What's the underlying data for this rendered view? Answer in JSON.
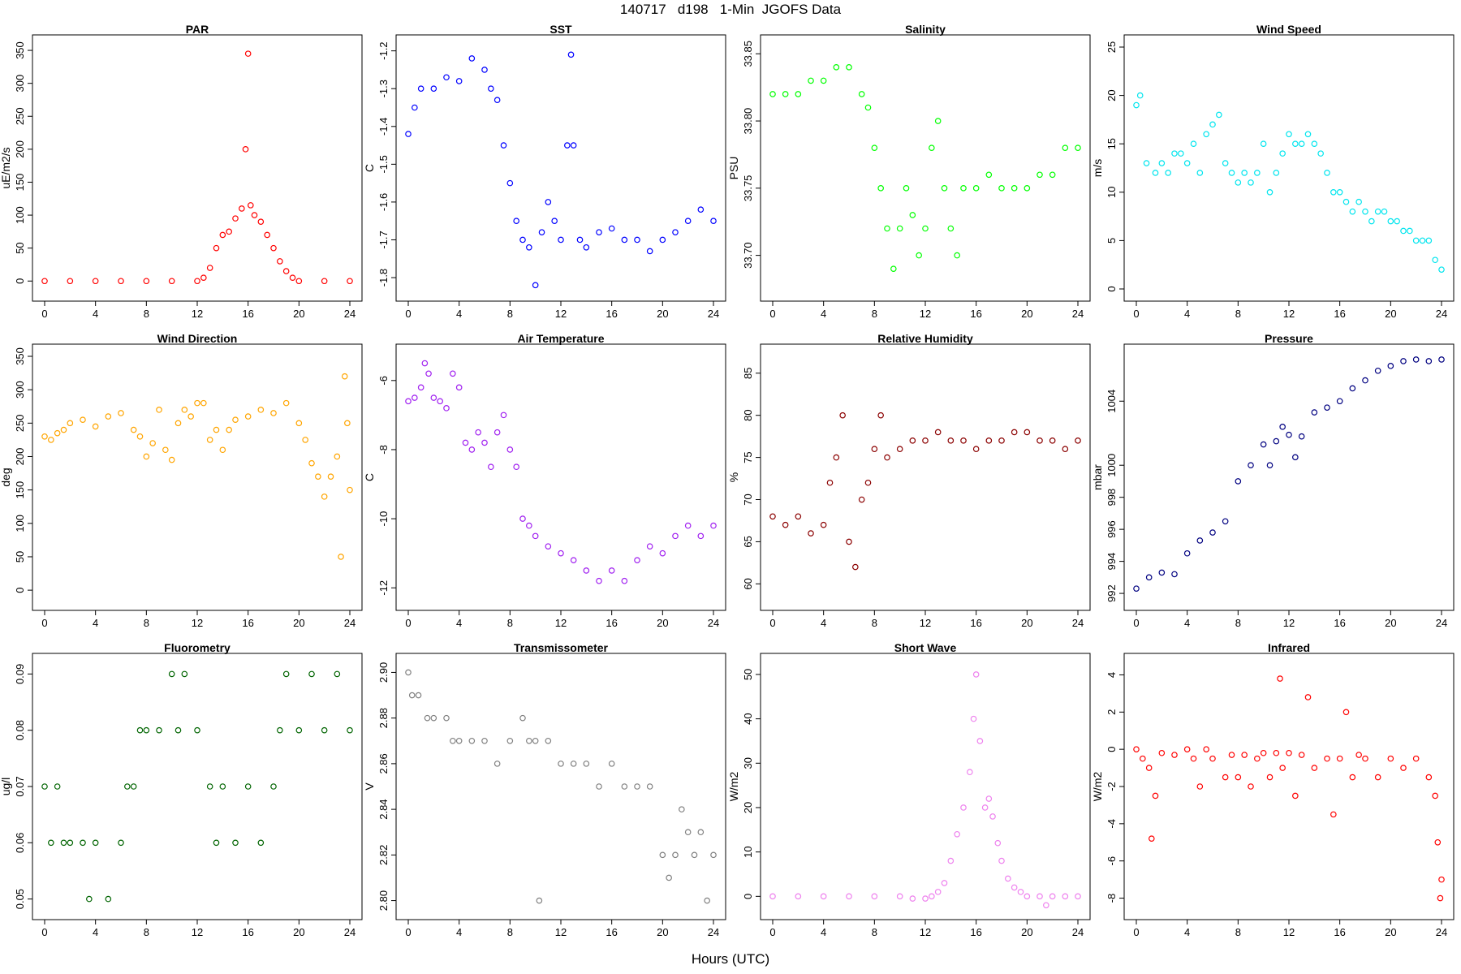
{
  "figure": {
    "title": "140717   d198   1-Min  JGOFS Data",
    "xlabel": "Hours (UTC)"
  },
  "chart_data": [
    {
      "type": "scatter",
      "title": "PAR",
      "ylabel": "uE/m2/s",
      "color": "#ff0000",
      "xlim": [
        0,
        24
      ],
      "ylim": [
        -12,
        355
      ],
      "xticks": [
        0,
        4,
        8,
        12,
        16,
        20,
        24
      ],
      "yticks": [
        0,
        50,
        100,
        150,
        200,
        250,
        300,
        350
      ],
      "x": [
        0,
        2,
        4,
        6,
        8,
        10,
        12,
        12.5,
        13,
        13.5,
        14,
        14.5,
        15,
        15.5,
        15.8,
        16,
        16.2,
        16.5,
        17,
        17.5,
        18,
        18.5,
        19,
        19.5,
        20,
        22,
        24
      ],
      "y": [
        0,
        0,
        0,
        0,
        0,
        0,
        0,
        5,
        20,
        50,
        70,
        75,
        95,
        110,
        200,
        345,
        115,
        100,
        90,
        70,
        50,
        30,
        15,
        5,
        0,
        0,
        0
      ]
    },
    {
      "type": "scatter",
      "title": "SST",
      "ylabel": "C",
      "color": "#0000ff",
      "xlim": [
        0,
        24
      ],
      "ylim": [
        -1.83,
        -1.19
      ],
      "xticks": [
        0,
        4,
        8,
        12,
        16,
        20,
        24
      ],
      "yticks": [
        -1.2,
        -1.3,
        -1.4,
        -1.5,
        -1.6,
        -1.7,
        -1.8
      ],
      "x": [
        0,
        0.5,
        1,
        2,
        3,
        4,
        5,
        6,
        6.5,
        7,
        7.5,
        8,
        8.5,
        9,
        9.5,
        10,
        10.5,
        11,
        11.5,
        12,
        12.5,
        12.8,
        13,
        13.5,
        14,
        15,
        16,
        17,
        18,
        19,
        20,
        21,
        22,
        23,
        24
      ],
      "y": [
        -1.42,
        -1.35,
        -1.3,
        -1.3,
        -1.27,
        -1.28,
        -1.22,
        -1.25,
        -1.3,
        -1.33,
        -1.45,
        -1.55,
        -1.65,
        -1.7,
        -1.72,
        -1.82,
        -1.68,
        -1.6,
        -1.65,
        -1.7,
        -1.45,
        -1.21,
        -1.45,
        -1.7,
        -1.72,
        -1.68,
        -1.67,
        -1.7,
        -1.7,
        -1.73,
        -1.7,
        -1.68,
        -1.65,
        -1.62,
        -1.65
      ]
    },
    {
      "type": "scatter",
      "title": "Salinity",
      "ylabel": "PSU",
      "color": "#00ff00",
      "xlim": [
        0,
        24
      ],
      "ylim": [
        33.675,
        33.855
      ],
      "xticks": [
        0,
        4,
        8,
        12,
        16,
        20,
        24
      ],
      "yticks": [
        33.7,
        33.75,
        33.8,
        33.85
      ],
      "x": [
        0,
        1,
        2,
        3,
        4,
        5,
        6,
        7,
        7.5,
        8,
        8.5,
        9,
        9.5,
        10,
        10.5,
        11,
        11.5,
        12,
        12.5,
        13,
        13.5,
        14,
        14.5,
        15,
        16,
        17,
        18,
        19,
        20,
        21,
        22,
        23,
        24
      ],
      "y": [
        33.82,
        33.82,
        33.82,
        33.83,
        33.83,
        33.84,
        33.84,
        33.82,
        33.81,
        33.78,
        33.75,
        33.72,
        33.69,
        33.72,
        33.75,
        33.73,
        33.7,
        33.72,
        33.78,
        33.8,
        33.75,
        33.72,
        33.7,
        33.75,
        33.75,
        33.76,
        33.75,
        33.75,
        33.75,
        33.76,
        33.76,
        33.78,
        33.78
      ]
    },
    {
      "type": "scatter",
      "title": "Wind Speed",
      "ylabel": "m/s",
      "color": "#00e5ee",
      "xlim": [
        0,
        24
      ],
      "ylim": [
        0,
        25
      ],
      "xticks": [
        0,
        4,
        8,
        12,
        16,
        20,
        24
      ],
      "yticks": [
        0,
        5,
        10,
        15,
        20,
        25
      ],
      "x": [
        0,
        0.3,
        0.8,
        1.5,
        2,
        2.5,
        3,
        3.5,
        4,
        4.5,
        5,
        5.5,
        6,
        6.5,
        7,
        7.5,
        8,
        8.5,
        9,
        9.5,
        10,
        10.5,
        11,
        11.5,
        12,
        12.5,
        13,
        13.5,
        14,
        14.5,
        15,
        15.5,
        16,
        16.5,
        17,
        17.5,
        18,
        18.5,
        19,
        19.5,
        20,
        20.5,
        21,
        21.5,
        22,
        22.5,
        23,
        23.5,
        24
      ],
      "y": [
        19,
        20,
        13,
        12,
        13,
        12,
        14,
        14,
        13,
        15,
        12,
        16,
        17,
        18,
        13,
        12,
        11,
        12,
        11,
        12,
        15,
        10,
        12,
        14,
        16,
        15,
        15,
        16,
        15,
        14,
        12,
        10,
        10,
        9,
        8,
        9,
        8,
        7,
        8,
        8,
        7,
        7,
        6,
        6,
        5,
        5,
        5,
        3,
        2
      ]
    },
    {
      "type": "scatter",
      "title": "Wind Direction",
      "ylabel": "deg",
      "color": "#ffa500",
      "xlim": [
        0,
        24
      ],
      "ylim": [
        -12,
        350
      ],
      "xticks": [
        0,
        4,
        8,
        12,
        16,
        20,
        24
      ],
      "yticks": [
        0,
        50,
        100,
        150,
        200,
        250,
        300,
        350
      ],
      "x": [
        0,
        0.5,
        1,
        1.5,
        2,
        3,
        4,
        5,
        6,
        7,
        7.5,
        8,
        8.5,
        9,
        9.5,
        10,
        10.5,
        11,
        11.5,
        12,
        12.5,
        13,
        13.5,
        14,
        14.5,
        15,
        16,
        17,
        18,
        19,
        20,
        20.5,
        21,
        21.5,
        22,
        22.5,
        23,
        23.3,
        23.6,
        23.8,
        24
      ],
      "y": [
        230,
        225,
        235,
        240,
        250,
        255,
        245,
        260,
        265,
        240,
        230,
        200,
        220,
        270,
        210,
        195,
        250,
        270,
        260,
        280,
        280,
        225,
        240,
        210,
        240,
        255,
        260,
        270,
        265,
        280,
        250,
        225,
        190,
        170,
        140,
        170,
        200,
        50,
        320,
        250,
        150
      ]
    },
    {
      "type": "scatter",
      "title": "Air Temperature",
      "ylabel": "C",
      "color": "#a020f0",
      "xlim": [
        0,
        24
      ],
      "ylim": [
        -12.3,
        -5.3
      ],
      "xticks": [
        0,
        4,
        8,
        12,
        16,
        20,
        24
      ],
      "yticks": [
        -6,
        -8,
        -10,
        -12
      ],
      "x": [
        0,
        0.5,
        1,
        1.3,
        1.6,
        2,
        2.5,
        3,
        3.5,
        4,
        4.5,
        5,
        5.5,
        6,
        6.5,
        7,
        7.5,
        8,
        8.5,
        9,
        9.5,
        10,
        11,
        12,
        13,
        14,
        15,
        16,
        17,
        18,
        19,
        20,
        21,
        22,
        23,
        24
      ],
      "y": [
        -6.6,
        -6.5,
        -6.2,
        -5.5,
        -5.8,
        -6.5,
        -6.6,
        -6.8,
        -5.8,
        -6.2,
        -7.8,
        -8.0,
        -7.5,
        -7.8,
        -8.5,
        -7.5,
        -7.0,
        -8.0,
        -8.5,
        -10.0,
        -10.2,
        -10.5,
        -10.8,
        -11.0,
        -11.2,
        -11.5,
        -11.8,
        -11.5,
        -11.8,
        -11.2,
        -10.8,
        -11.0,
        -10.5,
        -10.2,
        -10.5,
        -10.2
      ]
    },
    {
      "type": "scatter",
      "title": "Relative Humidity",
      "ylabel": "%",
      "color": "#8b0000",
      "xlim": [
        0,
        24
      ],
      "ylim": [
        58.3,
        87
      ],
      "xticks": [
        0,
        4,
        8,
        12,
        16,
        20,
        24
      ],
      "yticks": [
        60,
        65,
        70,
        75,
        80,
        85
      ],
      "x": [
        0,
        1,
        2,
        3,
        4,
        4.5,
        5,
        5.5,
        6,
        6.5,
        7,
        7.5,
        8,
        8.5,
        9,
        10,
        11,
        12,
        13,
        14,
        15,
        16,
        17,
        18,
        19,
        20,
        21,
        22,
        23,
        24
      ],
      "y": [
        68,
        67,
        68,
        66,
        67,
        72,
        75,
        80,
        65,
        62,
        70,
        72,
        76,
        80,
        75,
        76,
        77,
        77,
        78,
        77,
        77,
        76,
        77,
        77,
        78,
        78,
        77,
        77,
        76,
        77
      ]
    },
    {
      "type": "scatter",
      "title": "Pressure",
      "ylabel": "mbar",
      "color": "#000080",
      "xlim": [
        0,
        24
      ],
      "ylim": [
        991.7,
        1006.8
      ],
      "xticks": [
        0,
        4,
        8,
        12,
        16,
        20,
        24
      ],
      "yticks": [
        992,
        994,
        996,
        998,
        1000,
        1004
      ],
      "x": [
        0,
        1,
        2,
        3,
        4,
        5,
        6,
        7,
        8,
        9,
        10,
        10.5,
        11,
        11.5,
        12,
        12.5,
        13,
        14,
        15,
        16,
        17,
        18,
        19,
        20,
        21,
        22,
        23,
        24
      ],
      "y": [
        992.3,
        993.0,
        993.3,
        993.2,
        994.5,
        995.3,
        995.8,
        996.5,
        999.0,
        1000.0,
        1001.3,
        1000.0,
        1001.5,
        1002.4,
        1001.9,
        1000.5,
        1001.8,
        1003.3,
        1003.6,
        1004.0,
        1004.8,
        1005.3,
        1005.9,
        1006.2,
        1006.5,
        1006.6,
        1006.5,
        1006.6
      ]
    },
    {
      "type": "scatter",
      "title": "Fluorometry",
      "ylabel": "ug/l",
      "color": "#006400",
      "xlim": [
        0,
        24
      ],
      "ylim": [
        0.0485,
        0.0915
      ],
      "xticks": [
        0,
        4,
        8,
        12,
        16,
        20,
        24
      ],
      "yticks": [
        0.05,
        0.06,
        0.07,
        0.08,
        0.09
      ],
      "x": [
        0,
        0.5,
        1,
        1.5,
        2,
        3,
        3.5,
        4,
        5,
        6,
        6.5,
        7,
        7.5,
        8,
        9,
        10,
        10.5,
        11,
        12,
        13,
        13.5,
        14,
        15,
        16,
        17,
        18,
        18.5,
        19,
        20,
        21,
        22,
        23,
        24
      ],
      "y": [
        0.07,
        0.06,
        0.07,
        0.06,
        0.06,
        0.06,
        0.05,
        0.06,
        0.05,
        0.06,
        0.07,
        0.07,
        0.08,
        0.08,
        0.08,
        0.09,
        0.08,
        0.09,
        0.08,
        0.07,
        0.06,
        0.07,
        0.06,
        0.07,
        0.06,
        0.07,
        0.08,
        0.09,
        0.08,
        0.09,
        0.08,
        0.09,
        0.08
      ]
    },
    {
      "type": "scatter",
      "title": "Transmissometer",
      "ylabel": "V",
      "color": "#808080",
      "xlim": [
        0,
        24
      ],
      "ylim": [
        2.797,
        2.903
      ],
      "xticks": [
        0,
        4,
        8,
        12,
        16,
        20,
        24
      ],
      "yticks": [
        2.8,
        2.82,
        2.84,
        2.86,
        2.88,
        2.9
      ],
      "x": [
        0,
        0.3,
        0.8,
        1.5,
        2,
        3,
        3.5,
        4,
        5,
        6,
        7,
        8,
        9,
        9.5,
        10,
        10.3,
        11,
        12,
        13,
        14,
        15,
        16,
        17,
        18,
        19,
        20,
        20.5,
        21,
        21.5,
        22,
        22.5,
        23,
        23.5,
        24
      ],
      "y": [
        2.9,
        2.89,
        2.89,
        2.88,
        2.88,
        2.88,
        2.87,
        2.87,
        2.87,
        2.87,
        2.86,
        2.87,
        2.88,
        2.87,
        2.87,
        2.8,
        2.87,
        2.86,
        2.86,
        2.86,
        2.85,
        2.86,
        2.85,
        2.85,
        2.85,
        2.82,
        2.81,
        2.82,
        2.84,
        2.83,
        2.82,
        2.83,
        2.8,
        2.82
      ]
    },
    {
      "type": "scatter",
      "title": "Short Wave",
      "ylabel": "W/m2",
      "color": "#ee82ee",
      "xlim": [
        0,
        24
      ],
      "ylim": [
        -2.5,
        52
      ],
      "xticks": [
        0,
        4,
        8,
        12,
        16,
        20,
        24
      ],
      "yticks": [
        0,
        10,
        20,
        30,
        40,
        50
      ],
      "x": [
        0,
        2,
        4,
        6,
        8,
        10,
        11,
        12,
        12.5,
        13,
        13.5,
        14,
        14.5,
        15,
        15.5,
        15.8,
        16,
        16.3,
        16.7,
        17,
        17.3,
        17.7,
        18,
        18.5,
        19,
        19.5,
        20,
        21,
        21.5,
        22,
        23,
        24
      ],
      "y": [
        0,
        0,
        0,
        0,
        0,
        0,
        -0.5,
        -0.5,
        0,
        1,
        3,
        8,
        14,
        20,
        28,
        40,
        50,
        35,
        20,
        22,
        18,
        12,
        8,
        4,
        2,
        1,
        0,
        0,
        -2,
        0,
        0,
        0
      ]
    },
    {
      "type": "scatter",
      "title": "Infrared",
      "ylabel": "W/m2",
      "color": "#ff0000",
      "xlim": [
        0,
        24
      ],
      "ylim": [
        -8.5,
        4.5
      ],
      "xticks": [
        0,
        4,
        8,
        12,
        16,
        20,
        24
      ],
      "yticks": [
        -8,
        -6,
        -4,
        -2,
        0,
        2,
        4
      ],
      "x": [
        0,
        0.5,
        1,
        1.2,
        1.5,
        2,
        3,
        4,
        4.5,
        5,
        5.5,
        6,
        7,
        7.5,
        8,
        8.5,
        9,
        9.5,
        10,
        10.5,
        11,
        11.3,
        11.5,
        12,
        12.5,
        13,
        13.5,
        14,
        15,
        15.5,
        16,
        16.5,
        17,
        17.5,
        18,
        19,
        20,
        21,
        22,
        23,
        23.5,
        23.7,
        23.9,
        24
      ],
      "y": [
        0,
        -0.5,
        -1,
        -4.8,
        -2.5,
        -0.2,
        -0.3,
        0,
        -0.5,
        -2,
        0,
        -0.5,
        -1.5,
        -0.3,
        -1.5,
        -0.3,
        -2,
        -0.5,
        -0.2,
        -1.5,
        -0.2,
        3.8,
        -1,
        -0.2,
        -2.5,
        -0.3,
        2.8,
        -1,
        -0.5,
        -3.5,
        -0.5,
        2,
        -1.5,
        -0.3,
        -0.5,
        -1.5,
        -0.5,
        -1,
        -0.5,
        -1.5,
        -2.5,
        -5,
        -8,
        -7
      ]
    }
  ]
}
